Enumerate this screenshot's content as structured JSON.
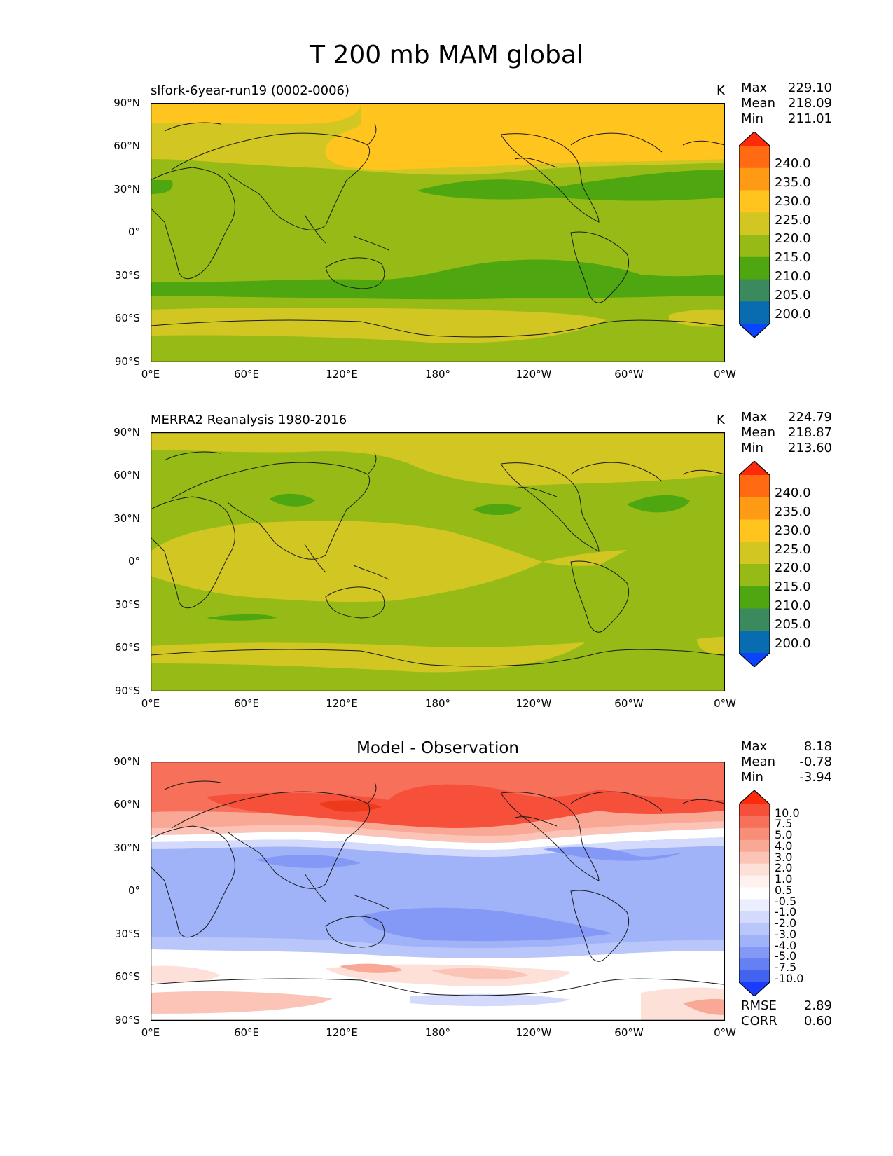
{
  "figure_title": "T 200 mb MAM global",
  "chart_data": [
    {
      "type": "heatmap",
      "title": "slfork-6year-run19 (0002-0006)",
      "units": "K",
      "stats": {
        "max": "229.10",
        "mean": "218.09",
        "min": "211.01"
      },
      "stat_labels": {
        "max": "Max",
        "mean": "Mean",
        "min": "Min"
      },
      "x_ticks": [
        "0°E",
        "60°E",
        "120°E",
        "180°",
        "120°W",
        "60°W",
        "0°W"
      ],
      "y_ticks": [
        "90°N",
        "60°N",
        "30°N",
        "0°",
        "30°S",
        "60°S",
        "90°S"
      ],
      "xlim": [
        0,
        360
      ],
      "ylim": [
        -90,
        90
      ],
      "colorbar_levels": [
        "240.0",
        "235.0",
        "230.0",
        "225.0",
        "220.0",
        "215.0",
        "210.0",
        "205.0",
        "200.0"
      ],
      "colorbar_colors": [
        "#ff2a0a",
        "#ff6a12",
        "#ff9a14",
        "#ffc41e",
        "#d2c722",
        "#97bb16",
        "#4ea610",
        "#3a8a5e",
        "#0a6cb0",
        "#0a44ff"
      ]
    },
    {
      "type": "heatmap",
      "title": "MERRA2 Reanalysis 1980-2016",
      "units": "K",
      "stats": {
        "max": "224.79",
        "mean": "218.87",
        "min": "213.60"
      },
      "stat_labels": {
        "max": "Max",
        "mean": "Mean",
        "min": "Min"
      },
      "x_ticks": [
        "0°E",
        "60°E",
        "120°E",
        "180°",
        "120°W",
        "60°W",
        "0°W"
      ],
      "y_ticks": [
        "90°N",
        "60°N",
        "30°N",
        "0°",
        "30°S",
        "60°S",
        "90°S"
      ],
      "xlim": [
        0,
        360
      ],
      "ylim": [
        -90,
        90
      ],
      "colorbar_levels": [
        "240.0",
        "235.0",
        "230.0",
        "225.0",
        "220.0",
        "215.0",
        "210.0",
        "205.0",
        "200.0"
      ],
      "colorbar_colors": [
        "#ff2a0a",
        "#ff6a12",
        "#ff9a14",
        "#ffc41e",
        "#d2c722",
        "#97bb16",
        "#4ea610",
        "#3a8a5e",
        "#0a6cb0",
        "#0a44ff"
      ]
    },
    {
      "type": "heatmap",
      "title": "Model - Observation",
      "units": "",
      "stats": {
        "max": "8.18",
        "mean": "-0.78",
        "min": "-3.94"
      },
      "stat_labels": {
        "max": "Max",
        "mean": "Mean",
        "min": "Min"
      },
      "x_ticks": [
        "0°E",
        "60°E",
        "120°E",
        "180°",
        "120°W",
        "60°W",
        "0°W"
      ],
      "y_ticks": [
        "90°N",
        "60°N",
        "30°N",
        "0°",
        "30°S",
        "60°S",
        "90°S"
      ],
      "xlim": [
        0,
        360
      ],
      "ylim": [
        -90,
        90
      ],
      "colorbar_levels": [
        "10.0",
        "7.5",
        "5.0",
        "4.0",
        "3.0",
        "2.0",
        "1.0",
        "0.5",
        "-0.5",
        "-1.0",
        "-2.0",
        "-3.0",
        "-4.0",
        "-5.0",
        "-7.5",
        "-10.0"
      ],
      "colorbar_colors": [
        "#ff2a0a",
        "#f6503a",
        "#f7705a",
        "#f88d78",
        "#f9a896",
        "#fbc4b7",
        "#fde0d8",
        "#fff2ee",
        "#ffffff",
        "#eaeeff",
        "#d3dafc",
        "#b9c6fa",
        "#a0b2f8",
        "#8499f5",
        "#6580f2",
        "#4263f0",
        "#1a3cff"
      ],
      "rmse_label": "RMSE",
      "rmse": "2.89",
      "corr_label": "CORR",
      "corr": "0.60"
    }
  ]
}
